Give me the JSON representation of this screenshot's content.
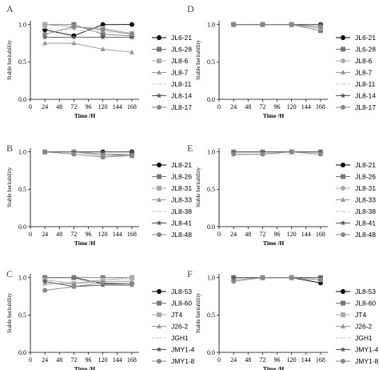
{
  "chart_data": [
    {
      "type": "line",
      "panel": "A",
      "x": [
        24,
        72,
        120,
        168
      ],
      "xticks": [
        "0",
        "24",
        "48",
        "72",
        "96",
        "120",
        "144",
        "168"
      ],
      "yticks": [
        "0.0",
        "0.5",
        "1.0"
      ],
      "xlim": [
        0,
        180
      ],
      "ylim": [
        0,
        1.05
      ],
      "xlabel": "Time /H",
      "ylabel": "Stable heritability",
      "series": [
        {
          "name": "JL6-21",
          "color": "#000000",
          "marker": "circle",
          "dash": "",
          "values": [
            0.93,
            0.85,
            1.0,
            1.0
          ]
        },
        {
          "name": "JL6-28",
          "color": "#777777",
          "marker": "square",
          "dash": "",
          "values": [
            1.0,
            1.0,
            0.87,
            0.85
          ]
        },
        {
          "name": "JL8-6",
          "color": "#aaaaaa",
          "marker": "square",
          "dash": "",
          "values": [
            1.0,
            0.97,
            0.95,
            0.88
          ]
        },
        {
          "name": "JL8-7",
          "color": "#999999",
          "marker": "triangle",
          "dash": "",
          "values": [
            0.75,
            0.75,
            0.67,
            0.63
          ]
        },
        {
          "name": "JL8-11",
          "color": "#cccccc",
          "marker": "none",
          "dash": "3,2",
          "values": [
            0.95,
            0.93,
            0.9,
            0.88
          ]
        },
        {
          "name": "JL8-14",
          "color": "#555555",
          "marker": "star",
          "dash": "",
          "values": [
            0.83,
            0.83,
            0.83,
            0.83
          ]
        },
        {
          "name": "JL8-17",
          "color": "#888888",
          "marker": "circle",
          "dash": "",
          "values": [
            0.87,
            0.97,
            0.93,
            0.87
          ]
        }
      ]
    },
    {
      "type": "line",
      "panel": "D",
      "x": [
        24,
        72,
        120,
        168
      ],
      "xticks": [
        "0",
        "24",
        "48",
        "72",
        "96",
        "120",
        "144",
        "168"
      ],
      "yticks": [
        "0.0",
        "0.5",
        "1.0"
      ],
      "xlim": [
        0,
        180
      ],
      "ylim": [
        0,
        1.05
      ],
      "xlabel": "Time /H",
      "ylabel": "Stable heritability",
      "series": [
        {
          "name": "JL6-21",
          "color": "#000000",
          "marker": "circle",
          "dash": "",
          "values": [
            1.0,
            1.0,
            1.0,
            1.0
          ]
        },
        {
          "name": "JL6-28",
          "color": "#777777",
          "marker": "square",
          "dash": "",
          "values": [
            1.0,
            1.0,
            1.0,
            0.92
          ]
        },
        {
          "name": "JL8-6",
          "color": "#aaaaaa",
          "marker": "circle",
          "dash": "",
          "values": [
            1.0,
            1.0,
            1.0,
            0.95
          ]
        },
        {
          "name": "JL8-7",
          "color": "#999999",
          "marker": "triangle",
          "dash": "",
          "values": [
            1.0,
            1.0,
            1.0,
            1.0
          ]
        },
        {
          "name": "JL8-11",
          "color": "#cccccc",
          "marker": "none",
          "dash": "3,2",
          "values": [
            1.0,
            1.0,
            1.0,
            1.0
          ]
        },
        {
          "name": "JL8-14",
          "color": "#555555",
          "marker": "star",
          "dash": "",
          "values": [
            1.0,
            1.0,
            1.0,
            1.0
          ]
        },
        {
          "name": "JL8-17",
          "color": "#888888",
          "marker": "circle",
          "dash": "",
          "values": [
            1.0,
            1.0,
            1.0,
            0.97
          ]
        }
      ]
    },
    {
      "type": "line",
      "panel": "B",
      "x": [
        24,
        72,
        120,
        168
      ],
      "xticks": [
        "0",
        "24",
        "48",
        "72",
        "96",
        "120",
        "144",
        "168"
      ],
      "yticks": [
        "0.0",
        "0.5",
        "1.0"
      ],
      "xlim": [
        0,
        180
      ],
      "ylim": [
        0,
        1.05
      ],
      "xlabel": "Time /H",
      "ylabel": "Stable heritability",
      "series": [
        {
          "name": "JL8-21",
          "color": "#000000",
          "marker": "circle",
          "dash": "",
          "values": [
            1.0,
            1.0,
            1.0,
            1.0
          ]
        },
        {
          "name": "JL8-26",
          "color": "#777777",
          "marker": "square",
          "dash": "",
          "values": [
            1.0,
            1.0,
            0.97,
            0.95
          ]
        },
        {
          "name": "JL8-31",
          "color": "#aaaaaa",
          "marker": "square",
          "dash": "",
          "values": [
            1.0,
            1.0,
            0.95,
            0.95
          ]
        },
        {
          "name": "JL8-33",
          "color": "#999999",
          "marker": "triangle",
          "dash": "",
          "values": [
            1.0,
            1.0,
            0.97,
            0.97
          ]
        },
        {
          "name": "JL8-38",
          "color": "#cccccc",
          "marker": "none",
          "dash": "3,2",
          "values": [
            1.0,
            1.0,
            1.0,
            1.0
          ]
        },
        {
          "name": "JL8-41",
          "color": "#555555",
          "marker": "star",
          "dash": "",
          "values": [
            1.0,
            1.0,
            1.0,
            1.0
          ]
        },
        {
          "name": "JL8-48",
          "color": "#888888",
          "marker": "circle",
          "dash": "",
          "values": [
            1.0,
            0.97,
            0.93,
            0.95
          ]
        }
      ]
    },
    {
      "type": "line",
      "panel": "E",
      "x": [
        24,
        72,
        120,
        168
      ],
      "xticks": [
        "0",
        "24",
        "48",
        "72",
        "96",
        "120",
        "144",
        "168"
      ],
      "yticks": [
        "0.0",
        "0.5",
        "1.0"
      ],
      "xlim": [
        0,
        180
      ],
      "ylim": [
        0,
        1.05
      ],
      "xlabel": "Time /H",
      "ylabel": "Stable heritability",
      "series": [
        {
          "name": "JL8-21",
          "color": "#000000",
          "marker": "circle",
          "dash": "",
          "values": [
            1.0,
            1.0,
            1.0,
            1.0
          ]
        },
        {
          "name": "JL8-26",
          "color": "#777777",
          "marker": "square",
          "dash": "",
          "values": [
            1.0,
            1.0,
            1.0,
            1.0
          ]
        },
        {
          "name": "JL8-31",
          "color": "#aaaaaa",
          "marker": "circle",
          "dash": "",
          "values": [
            1.0,
            1.0,
            1.0,
            1.0
          ]
        },
        {
          "name": "JL8-33",
          "color": "#999999",
          "marker": "triangle",
          "dash": "",
          "values": [
            1.0,
            1.0,
            1.0,
            1.0
          ]
        },
        {
          "name": "JL8-38",
          "color": "#cccccc",
          "marker": "none",
          "dash": "3,2",
          "values": [
            0.95,
            0.97,
            0.97,
            0.95
          ]
        },
        {
          "name": "JL8-41",
          "color": "#555555",
          "marker": "star",
          "dash": "",
          "values": [
            1.0,
            1.0,
            1.0,
            1.0
          ]
        },
        {
          "name": "JL8-48",
          "color": "#888888",
          "marker": "circle",
          "dash": "",
          "values": [
            0.97,
            0.97,
            1.0,
            0.97
          ]
        }
      ]
    },
    {
      "type": "line",
      "panel": "C",
      "x": [
        24,
        72,
        120,
        168
      ],
      "xticks": [
        "0",
        "24",
        "48",
        "72",
        "96",
        "120",
        "144",
        "168"
      ],
      "yticks": [
        "0.0",
        "0.5",
        "1.0"
      ],
      "xlim": [
        0,
        180
      ],
      "ylim": [
        0,
        1.05
      ],
      "xlabel": "Time /H",
      "ylabel": "Stable heritability",
      "series": [
        {
          "name": "JL8-53",
          "color": "#000000",
          "marker": "circle",
          "dash": "",
          "values": [
            1.0,
            1.0,
            0.92,
            0.92
          ]
        },
        {
          "name": "JL8-60",
          "color": "#777777",
          "marker": "square",
          "dash": "",
          "values": [
            1.0,
            1.0,
            1.0,
            1.0
          ]
        },
        {
          "name": "JT4",
          "color": "#aaaaaa",
          "marker": "square",
          "dash": "",
          "values": [
            0.97,
            0.92,
            0.97,
            1.0
          ]
        },
        {
          "name": "J26-2",
          "color": "#999999",
          "marker": "triangle",
          "dash": "",
          "values": [
            0.92,
            0.92,
            0.95,
            0.95
          ]
        },
        {
          "name": "JGH1",
          "color": "#cccccc",
          "marker": "none",
          "dash": "3,2",
          "values": [
            0.9,
            0.95,
            0.97,
            0.97
          ]
        },
        {
          "name": "JMY1-4",
          "color": "#555555",
          "marker": "star",
          "dash": "",
          "values": [
            0.95,
            0.88,
            0.9,
            0.9
          ]
        },
        {
          "name": "JMY1-8",
          "color": "#888888",
          "marker": "circle",
          "dash": "",
          "values": [
            0.83,
            0.88,
            0.93,
            0.92
          ]
        }
      ]
    },
    {
      "type": "line",
      "panel": "F",
      "x": [
        24,
        72,
        120,
        168
      ],
      "xticks": [
        "0",
        "24",
        "48",
        "72",
        "96",
        "120",
        "144",
        "168"
      ],
      "yticks": [
        "0.0",
        "0.5",
        "1.0"
      ],
      "xlim": [
        0,
        180
      ],
      "ylim": [
        0,
        1.05
      ],
      "xlabel": "Time /H",
      "ylabel": "Stable heritability",
      "series": [
        {
          "name": "JL8-53",
          "color": "#000000",
          "marker": "circle",
          "dash": "",
          "values": [
            1.0,
            1.0,
            1.0,
            0.93
          ]
        },
        {
          "name": "JL8-60",
          "color": "#777777",
          "marker": "square",
          "dash": "",
          "values": [
            1.0,
            1.0,
            1.0,
            1.0
          ]
        },
        {
          "name": "JT4",
          "color": "#aaaaaa",
          "marker": "square",
          "dash": "",
          "values": [
            0.97,
            1.0,
            1.0,
            0.97
          ]
        },
        {
          "name": "J26-2",
          "color": "#999999",
          "marker": "triangle",
          "dash": "",
          "values": [
            1.0,
            1.0,
            1.0,
            1.0
          ]
        },
        {
          "name": "JGH1",
          "color": "#cccccc",
          "marker": "none",
          "dash": "3,2",
          "values": [
            1.0,
            1.0,
            1.0,
            0.97
          ]
        },
        {
          "name": "JMY1-4",
          "color": "#555555",
          "marker": "star",
          "dash": "",
          "values": [
            1.0,
            1.0,
            1.0,
            1.0
          ]
        },
        {
          "name": "JMY1-8",
          "color": "#888888",
          "marker": "circle",
          "dash": "",
          "values": [
            0.95,
            1.0,
            1.0,
            0.97
          ]
        }
      ]
    }
  ]
}
